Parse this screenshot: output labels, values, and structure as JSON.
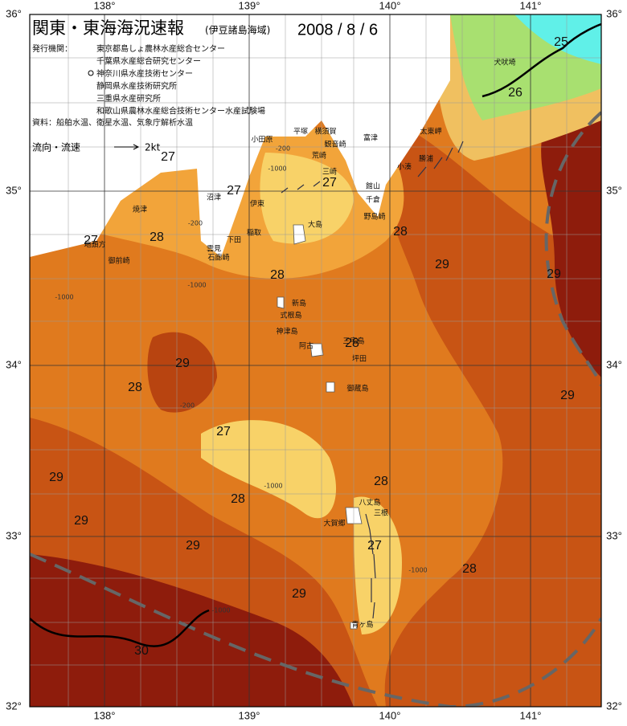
{
  "header": {
    "title": "関東・東海海況速報",
    "subtitle": "(伊豆諸島海域)",
    "date": "2008 / 8 / 6"
  },
  "publishers": {
    "label": "発行機関：",
    "items": [
      "東京都島しょ農林水産総合センター",
      "千葉県水産総合研究センター",
      "神奈川県水産技術センター",
      "静岡県水産技術研究所",
      "三重県水産研究所",
      "和歌山県農林水産総合技術センター水産試験場"
    ]
  },
  "sources": "資料：船舶水温、衛星水温、気象庁解析水温",
  "legend": {
    "label": "流向・流速",
    "unit": "2kt"
  },
  "axes": {
    "lon_labels": [
      "138°",
      "139°",
      "140°",
      "141°"
    ],
    "lat_labels": [
      "36°",
      "35°",
      "34°",
      "33°",
      "32°"
    ]
  },
  "contour_labels": [
    "25",
    "26",
    "27",
    "27",
    "27",
    "27",
    "28",
    "28",
    "29",
    "29",
    "28",
    "28",
    "29",
    "28",
    "29",
    "27",
    "29",
    "28",
    "28",
    "29",
    "29",
    "27",
    "28",
    "29",
    "30"
  ],
  "depth_labels": [
    "-200",
    "-1000",
    "-200",
    "-1000",
    "-1000",
    "-200",
    "-1000",
    "-1000",
    "-1000"
  ],
  "place_names": [
    "犬吠埼",
    "太東岬",
    "勝浦",
    "小湊",
    "富津",
    "館山",
    "千倉",
    "野島崎",
    "大島",
    "平塚",
    "横須賀",
    "観音崎",
    "荒崎",
    "三崎",
    "小田原",
    "伊東",
    "稲取",
    "下田",
    "雲見",
    "石廊崎",
    "沼津",
    "焼津",
    "地頭方",
    "御前崎",
    "新島",
    "式根島",
    "神津島",
    "阿古",
    "三宅島",
    "坪田",
    "御蔵島",
    "八丈島",
    "三根",
    "大賀郷",
    "青ヶ島"
  ]
}
